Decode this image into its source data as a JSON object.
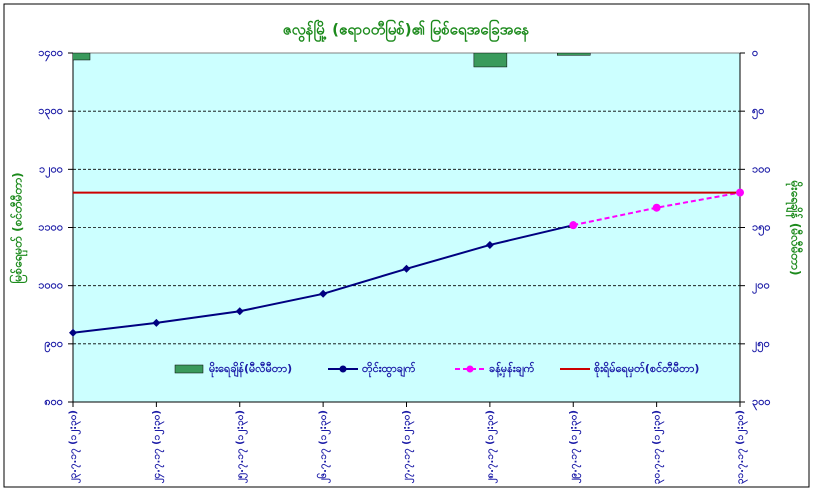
{
  "chart_data": {
    "type": "combo",
    "title": "ဇလွန်မြို့ (ဧရာဝတီမြစ်)၏ မြစ်ရေအခြေအနေ",
    "y_label": "မြစ်ရေမှတ် (စင်တီမီတာ)",
    "y2_label": "မိုးရေချိန် (မီလီမီတာ)",
    "categories": [
      "၂၃.၇.၁၇ (၁၂:၃၀)",
      "၂၄.၇.၁၇ (၁၂:၃၀)",
      "၂၅.၇.၁၇ (၁၂:၃၀)",
      "၂၆.၇.၁၇ (၁၂:၃၀)",
      "၂၇.၇.၁၇ (၁၂:၃၀)",
      "၂၈.၇.၁၇ (၁၂:၃၀)",
      "၂၉.၇.၁၇ (၁၂:၃၀)",
      "၃၀.၇.၁၇ (၁၂:၃၀)",
      "၃၁.၇.၁၇ (၁၂:၃၀)"
    ],
    "series": [
      {
        "name": "မိုးရေချိန်(မီလီမီတာ)",
        "type": "bar",
        "axis": "y2",
        "color": "#3a9a5c",
        "values": [
          6,
          0,
          0,
          0,
          0,
          12,
          2,
          null,
          null
        ]
      },
      {
        "name": "တိုင်းထွာချက်",
        "type": "line",
        "color": "#000080",
        "marker": "diamond",
        "values": [
          919,
          936,
          956,
          986,
          1029,
          1070,
          1104,
          null,
          null
        ]
      },
      {
        "name": "ခန့်မှန်းချက်",
        "type": "line",
        "color": "#ff00ff",
        "dashed": true,
        "marker": "circle",
        "values": [
          null,
          null,
          null,
          null,
          null,
          null,
          1104,
          1134,
          1160
        ]
      },
      {
        "name": "စိုးရိမ်ရေမှတ်(စင်တီမီတာ)",
        "type": "line",
        "color": "#cc0000",
        "values": [
          1160,
          1160,
          1160,
          1160,
          1160,
          1160,
          1160,
          1160,
          1160
        ]
      }
    ],
    "ylim": [
      800,
      1400
    ],
    "yticks": [
      {
        "value": 800,
        "label": "၈၀၀"
      },
      {
        "value": 900,
        "label": "၉၀၀"
      },
      {
        "value": 1000,
        "label": "၁၀၀၀"
      },
      {
        "value": 1100,
        "label": "၁၁၀၀"
      },
      {
        "value": 1200,
        "label": "၁၂၀၀"
      },
      {
        "value": 1300,
        "label": "၁၃၀၀"
      },
      {
        "value": 1400,
        "label": "၁၄၀၀"
      }
    ],
    "y2lim": [
      300,
      0
    ],
    "y2ticks": [
      {
        "value": 0,
        "label": "၀"
      },
      {
        "value": 50,
        "label": "၅၀"
      },
      {
        "value": 100,
        "label": "၁၀၀"
      },
      {
        "value": 150,
        "label": "၁၅၀"
      },
      {
        "value": 200,
        "label": "၂၀၀"
      },
      {
        "value": 250,
        "label": "၂၅၀"
      },
      {
        "value": 300,
        "label": "၃၀၀"
      }
    ],
    "grid": true,
    "plot_background": "#ccffff"
  }
}
